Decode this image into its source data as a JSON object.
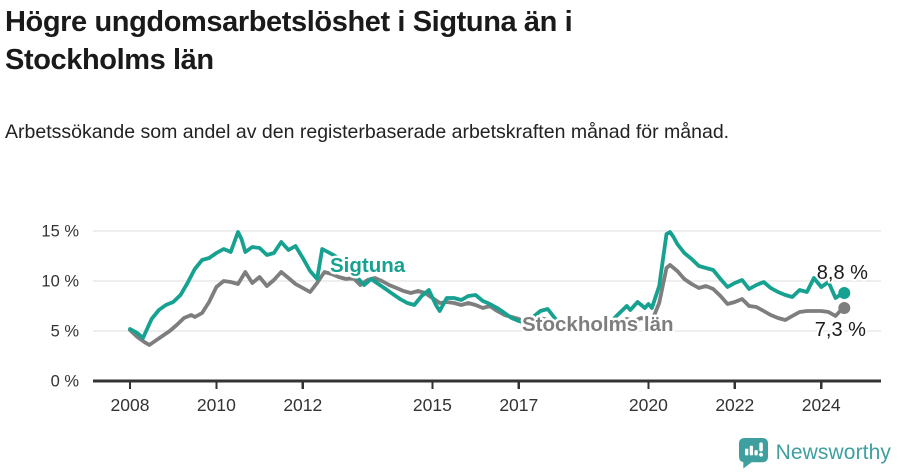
{
  "chart_data": {
    "type": "line",
    "title": "Högre ungdomsarbetslöshet i Sigtuna än i Stockholms län",
    "subtitle": "Arbetssökande som andel av den registerbaserade arbetskraften månad för månad.",
    "x_unit": "year (monthly observations)",
    "grid": "horizontal",
    "legend_position": "inline-labels-on-lines",
    "ylim": [
      0,
      15.5
    ],
    "xlim": [
      2007.15,
      2025.4
    ],
    "y_ticks": [
      {
        "value": 0,
        "label": "0 %"
      },
      {
        "value": 5,
        "label": "5 %"
      },
      {
        "value": 10,
        "label": "10 %"
      },
      {
        "value": 15,
        "label": "15 %"
      }
    ],
    "x_ticks": [
      {
        "value": 2008,
        "label": "2008"
      },
      {
        "value": 2010,
        "label": "2010"
      },
      {
        "value": 2012,
        "label": "2012"
      },
      {
        "value": 2015,
        "label": "2015"
      },
      {
        "value": 2017,
        "label": "2017"
      },
      {
        "value": 2020,
        "label": "2020"
      },
      {
        "value": 2022,
        "label": "2022"
      },
      {
        "value": 2024,
        "label": "2024"
      }
    ],
    "series": [
      {
        "name": "Sigtuna",
        "color": "#16a190",
        "end_label": "8,8 %",
        "end_value": 8.8,
        "points": [
          [
            2008.0,
            5.2
          ],
          [
            2008.17,
            4.8
          ],
          [
            2008.3,
            4.3
          ],
          [
            2008.5,
            6.2
          ],
          [
            2008.67,
            7.1
          ],
          [
            2008.83,
            7.6
          ],
          [
            2009.0,
            7.9
          ],
          [
            2009.17,
            8.6
          ],
          [
            2009.33,
            9.8
          ],
          [
            2009.5,
            11.2
          ],
          [
            2009.67,
            12.1
          ],
          [
            2009.83,
            12.3
          ],
          [
            2010.0,
            12.8
          ],
          [
            2010.17,
            13.2
          ],
          [
            2010.33,
            12.9
          ],
          [
            2010.5,
            14.9
          ],
          [
            2010.58,
            14.2
          ],
          [
            2010.67,
            12.9
          ],
          [
            2010.83,
            13.4
          ],
          [
            2011.0,
            13.3
          ],
          [
            2011.17,
            12.6
          ],
          [
            2011.33,
            12.8
          ],
          [
            2011.5,
            13.9
          ],
          [
            2011.67,
            13.1
          ],
          [
            2011.83,
            13.5
          ],
          [
            2012.0,
            12.3
          ],
          [
            2012.17,
            11.0
          ],
          [
            2012.33,
            10.2
          ],
          [
            2012.45,
            13.2
          ],
          [
            2012.58,
            12.9
          ],
          [
            2012.75,
            12.5
          ],
          [
            2012.9,
            12.0
          ],
          [
            2013.08,
            11.2
          ],
          [
            2013.25,
            10.4
          ],
          [
            2013.42,
            9.6
          ],
          [
            2013.58,
            10.2
          ],
          [
            2013.75,
            9.7
          ],
          [
            2013.92,
            9.2
          ],
          [
            2014.08,
            8.7
          ],
          [
            2014.25,
            8.2
          ],
          [
            2014.42,
            7.8
          ],
          [
            2014.58,
            7.6
          ],
          [
            2014.75,
            8.5
          ],
          [
            2014.92,
            9.1
          ],
          [
            2015.08,
            7.6
          ],
          [
            2015.17,
            7.0
          ],
          [
            2015.33,
            8.3
          ],
          [
            2015.5,
            8.3
          ],
          [
            2015.67,
            8.1
          ],
          [
            2015.83,
            8.5
          ],
          [
            2016.0,
            8.6
          ],
          [
            2016.17,
            8.0
          ],
          [
            2016.33,
            7.7
          ],
          [
            2016.5,
            7.3
          ],
          [
            2016.67,
            6.8
          ],
          [
            2016.83,
            6.3
          ],
          [
            2017.0,
            6.0
          ],
          [
            2017.17,
            5.8
          ],
          [
            2017.33,
            6.4
          ],
          [
            2017.5,
            7.0
          ],
          [
            2017.67,
            7.2
          ],
          [
            2017.83,
            6.3
          ],
          [
            2018.0,
            5.6
          ],
          [
            2018.17,
            5.3
          ],
          [
            2018.33,
            5.2
          ],
          [
            2018.5,
            5.7
          ],
          [
            2018.67,
            5.4
          ],
          [
            2018.83,
            5.2
          ],
          [
            2019.0,
            5.5
          ],
          [
            2019.17,
            6.1
          ],
          [
            2019.33,
            6.8
          ],
          [
            2019.5,
            7.5
          ],
          [
            2019.58,
            7.1
          ],
          [
            2019.75,
            7.9
          ],
          [
            2019.92,
            7.3
          ],
          [
            2020.0,
            7.7
          ],
          [
            2020.08,
            7.3
          ],
          [
            2020.25,
            9.5
          ],
          [
            2020.42,
            14.7
          ],
          [
            2020.5,
            14.9
          ],
          [
            2020.58,
            14.4
          ],
          [
            2020.67,
            13.7
          ],
          [
            2020.83,
            12.8
          ],
          [
            2021.0,
            12.2
          ],
          [
            2021.17,
            11.5
          ],
          [
            2021.33,
            11.3
          ],
          [
            2021.5,
            11.1
          ],
          [
            2021.67,
            10.2
          ],
          [
            2021.83,
            9.4
          ],
          [
            2022.0,
            9.8
          ],
          [
            2022.17,
            10.1
          ],
          [
            2022.33,
            9.2
          ],
          [
            2022.5,
            9.6
          ],
          [
            2022.67,
            9.9
          ],
          [
            2022.83,
            9.3
          ],
          [
            2023.0,
            8.9
          ],
          [
            2023.17,
            8.6
          ],
          [
            2023.33,
            8.4
          ],
          [
            2023.5,
            9.1
          ],
          [
            2023.67,
            8.9
          ],
          [
            2023.83,
            10.3
          ],
          [
            2024.0,
            9.4
          ],
          [
            2024.17,
            9.9
          ],
          [
            2024.33,
            8.3
          ],
          [
            2024.5,
            8.8
          ]
        ]
      },
      {
        "name": "Stockholms län",
        "color": "#7e7e7e",
        "end_label": "7,3 %",
        "end_value": 7.3,
        "points": [
          [
            2008.0,
            5.1
          ],
          [
            2008.17,
            4.4
          ],
          [
            2008.33,
            3.9
          ],
          [
            2008.45,
            3.6
          ],
          [
            2008.58,
            4.0
          ],
          [
            2008.75,
            4.5
          ],
          [
            2008.92,
            5.0
          ],
          [
            2009.08,
            5.6
          ],
          [
            2009.25,
            6.3
          ],
          [
            2009.42,
            6.6
          ],
          [
            2009.5,
            6.4
          ],
          [
            2009.67,
            6.8
          ],
          [
            2009.83,
            7.9
          ],
          [
            2010.0,
            9.4
          ],
          [
            2010.17,
            10.0
          ],
          [
            2010.33,
            9.9
          ],
          [
            2010.5,
            9.7
          ],
          [
            2010.67,
            10.9
          ],
          [
            2010.83,
            9.8
          ],
          [
            2011.0,
            10.4
          ],
          [
            2011.17,
            9.5
          ],
          [
            2011.33,
            10.1
          ],
          [
            2011.5,
            10.9
          ],
          [
            2011.67,
            10.3
          ],
          [
            2011.83,
            9.7
          ],
          [
            2012.0,
            9.3
          ],
          [
            2012.17,
            8.9
          ],
          [
            2012.33,
            9.8
          ],
          [
            2012.5,
            10.9
          ],
          [
            2012.67,
            10.7
          ],
          [
            2012.83,
            10.4
          ],
          [
            2013.0,
            10.2
          ],
          [
            2013.17,
            10.3
          ],
          [
            2013.33,
            9.6
          ],
          [
            2013.5,
            10.1
          ],
          [
            2013.67,
            10.3
          ],
          [
            2013.83,
            10.0
          ],
          [
            2014.0,
            9.6
          ],
          [
            2014.17,
            9.3
          ],
          [
            2014.33,
            9.0
          ],
          [
            2014.5,
            8.8
          ],
          [
            2014.67,
            9.0
          ],
          [
            2014.83,
            8.8
          ],
          [
            2015.0,
            8.3
          ],
          [
            2015.17,
            7.8
          ],
          [
            2015.33,
            7.9
          ],
          [
            2015.5,
            7.8
          ],
          [
            2015.67,
            7.6
          ],
          [
            2015.83,
            7.8
          ],
          [
            2016.0,
            7.6
          ],
          [
            2016.17,
            7.3
          ],
          [
            2016.33,
            7.5
          ],
          [
            2016.5,
            7.0
          ],
          [
            2016.67,
            6.6
          ],
          [
            2016.83,
            6.4
          ],
          [
            2017.0,
            6.2
          ],
          [
            2017.17,
            5.8
          ],
          [
            2017.33,
            5.9
          ],
          [
            2017.5,
            6.3
          ],
          [
            2017.67,
            6.1
          ],
          [
            2017.83,
            5.7
          ],
          [
            2018.0,
            5.3
          ],
          [
            2018.17,
            5.1
          ],
          [
            2018.33,
            5.0
          ],
          [
            2018.5,
            5.3
          ],
          [
            2018.67,
            5.2
          ],
          [
            2018.83,
            5.0
          ],
          [
            2019.0,
            5.2
          ],
          [
            2019.17,
            5.5
          ],
          [
            2019.33,
            5.9
          ],
          [
            2019.5,
            6.2
          ],
          [
            2019.67,
            6.0
          ],
          [
            2019.83,
            6.3
          ],
          [
            2020.0,
            6.1
          ],
          [
            2020.08,
            6.0
          ],
          [
            2020.25,
            7.8
          ],
          [
            2020.42,
            11.3
          ],
          [
            2020.5,
            11.6
          ],
          [
            2020.67,
            11.0
          ],
          [
            2020.83,
            10.2
          ],
          [
            2021.0,
            9.7
          ],
          [
            2021.17,
            9.3
          ],
          [
            2021.33,
            9.5
          ],
          [
            2021.5,
            9.2
          ],
          [
            2021.67,
            8.5
          ],
          [
            2021.83,
            7.7
          ],
          [
            2022.0,
            7.9
          ],
          [
            2022.17,
            8.2
          ],
          [
            2022.33,
            7.5
          ],
          [
            2022.5,
            7.4
          ],
          [
            2022.67,
            7.0
          ],
          [
            2022.83,
            6.6
          ],
          [
            2023.0,
            6.3
          ],
          [
            2023.17,
            6.1
          ],
          [
            2023.33,
            6.5
          ],
          [
            2023.5,
            6.9
          ],
          [
            2023.67,
            7.0
          ],
          [
            2023.83,
            7.0
          ],
          [
            2024.0,
            7.0
          ],
          [
            2024.17,
            6.9
          ],
          [
            2024.33,
            6.5
          ],
          [
            2024.5,
            7.3
          ]
        ]
      }
    ]
  },
  "branding": {
    "logo_text": "Newsworthy",
    "logo_color": "#3f9f9f",
    "logo_icon": "speech-bubble-bar-chart-exclamation"
  },
  "colors": {
    "title_text": "#1a1a1a",
    "subtitle_text": "#222222",
    "grid": "#dcdcdc",
    "axis": "#333333",
    "tick_text": "#333333",
    "value_label_text": "#1a1a1a"
  }
}
